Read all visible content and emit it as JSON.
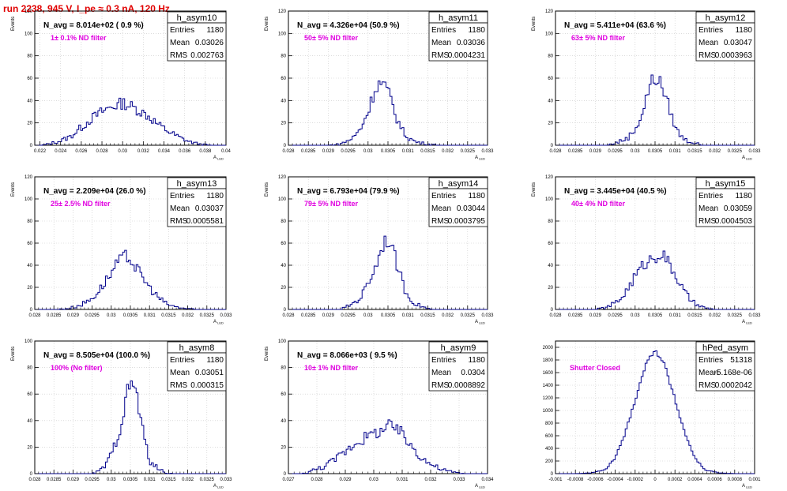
{
  "header": {
    "run_title": "run 2238,   945 V, I_pe ≈ 0.3 nA, 120 Hz"
  },
  "colors": {
    "histogram": "#00008b",
    "filter_label": "#e000e0",
    "frame": "#000000",
    "grid": "#c8c8c8",
    "title": "#e00000"
  },
  "chart_data": [
    {
      "type": "histogram",
      "name": "h_asym10",
      "navg": "N_avg = 8.014e+02 ( 0.9 %)",
      "filter": "1± 0.1% ND filter",
      "stats": {
        "entries": "1180",
        "mean": "0.03026",
        "rms": "0.002763"
      },
      "xlim": [
        0.0215,
        0.04
      ],
      "ylim": [
        0,
        120
      ],
      "xticks": [
        "0.022",
        "0.024",
        "0.026",
        "0.028",
        "0.03",
        "0.032",
        "0.034",
        "0.036",
        "0.038",
        "0.04"
      ],
      "yticks": [
        "0",
        "20",
        "40",
        "60",
        "80",
        "100",
        "120"
      ],
      "ylabel": "Events",
      "xlabel": "A_LED",
      "profile": [
        [
          0.0215,
          0
        ],
        [
          0.0222,
          0
        ],
        [
          0.0228,
          1
        ],
        [
          0.024,
          4
        ],
        [
          0.025,
          8
        ],
        [
          0.026,
          16
        ],
        [
          0.027,
          24
        ],
        [
          0.028,
          30
        ],
        [
          0.0288,
          34
        ],
        [
          0.0295,
          36
        ],
        [
          0.03,
          38
        ],
        [
          0.0305,
          36
        ],
        [
          0.031,
          34
        ],
        [
          0.0318,
          30
        ],
        [
          0.0325,
          26
        ],
        [
          0.0335,
          18
        ],
        [
          0.0345,
          12
        ],
        [
          0.0355,
          7
        ],
        [
          0.0365,
          3
        ],
        [
          0.0375,
          1
        ],
        [
          0.0385,
          0
        ],
        [
          0.04,
          0
        ]
      ]
    },
    {
      "type": "histogram",
      "name": "h_asym11",
      "navg": "N_avg = 4.326e+04 (50.9 %)",
      "filter": "50± 5% ND filter",
      "stats": {
        "entries": "1180",
        "mean": "0.03036",
        "rms": "0.0004231"
      },
      "xlim": [
        0.028,
        0.033
      ],
      "ylim": [
        0,
        120
      ],
      "xticks": [
        "0.028",
        "0.0285",
        "0.029",
        "0.0295",
        "0.03",
        "0.0305",
        "0.031",
        "0.0315",
        "0.032",
        "0.0325",
        "0.033"
      ],
      "yticks": [
        "0",
        "20",
        "40",
        "60",
        "80",
        "100",
        "120"
      ],
      "ylabel": "Events",
      "xlabel": "A_LED",
      "profile": [
        [
          0.028,
          0
        ],
        [
          0.029,
          0
        ],
        [
          0.0293,
          1
        ],
        [
          0.0296,
          6
        ],
        [
          0.0298,
          14
        ],
        [
          0.03,
          30
        ],
        [
          0.0301,
          42
        ],
        [
          0.0302,
          52
        ],
        [
          0.0303,
          56
        ],
        [
          0.0304,
          54
        ],
        [
          0.0305,
          48
        ],
        [
          0.0306,
          38
        ],
        [
          0.0307,
          26
        ],
        [
          0.0308,
          18
        ],
        [
          0.0309,
          11
        ],
        [
          0.031,
          7
        ],
        [
          0.0312,
          3
        ],
        [
          0.0315,
          1
        ],
        [
          0.0318,
          0
        ],
        [
          0.033,
          0
        ]
      ]
    },
    {
      "type": "histogram",
      "name": "h_asym12",
      "navg": "N_avg = 5.411e+04 (63.6 %)",
      "filter": "63± 5% ND filter",
      "stats": {
        "entries": "1180",
        "mean": "0.03047",
        "rms": "0.0003963"
      },
      "xlim": [
        0.028,
        0.033
      ],
      "ylim": [
        0,
        120
      ],
      "xticks": [
        "0.028",
        "0.0285",
        "0.029",
        "0.0295",
        "0.03",
        "0.0305",
        "0.031",
        "0.0315",
        "0.032",
        "0.0325",
        "0.033"
      ],
      "yticks": [
        "0",
        "20",
        "40",
        "60",
        "80",
        "100",
        "120"
      ],
      "ylabel": "Events",
      "xlabel": "A_LED",
      "profile": [
        [
          0.028,
          0
        ],
        [
          0.0293,
          0
        ],
        [
          0.0295,
          2
        ],
        [
          0.0298,
          6
        ],
        [
          0.03,
          14
        ],
        [
          0.0302,
          30
        ],
        [
          0.0303,
          46
        ],
        [
          0.0304,
          56
        ],
        [
          0.0305,
          60
        ],
        [
          0.0306,
          58
        ],
        [
          0.0307,
          50
        ],
        [
          0.0308,
          40
        ],
        [
          0.0309,
          28
        ],
        [
          0.031,
          18
        ],
        [
          0.0311,
          10
        ],
        [
          0.0313,
          4
        ],
        [
          0.0315,
          2
        ],
        [
          0.0317,
          0
        ],
        [
          0.033,
          0
        ]
      ]
    },
    {
      "type": "histogram",
      "name": "h_asym13",
      "navg": "N_avg = 2.209e+04 (26.0 %)",
      "filter": "25± 2.5% ND filter",
      "stats": {
        "entries": "1180",
        "mean": "0.03037",
        "rms": "0.0005581"
      },
      "xlim": [
        0.028,
        0.033
      ],
      "ylim": [
        0,
        120
      ],
      "xticks": [
        "0.028",
        "0.0285",
        "0.029",
        "0.0295",
        "0.03",
        "0.0305",
        "0.031",
        "0.0315",
        "0.032",
        "0.0325",
        "0.033"
      ],
      "yticks": [
        "0",
        "20",
        "40",
        "60",
        "80",
        "100",
        "120"
      ],
      "ylabel": "Events",
      "xlabel": "A_LED",
      "profile": [
        [
          0.028,
          0
        ],
        [
          0.0286,
          0
        ],
        [
          0.0289,
          1
        ],
        [
          0.0292,
          4
        ],
        [
          0.0295,
          10
        ],
        [
          0.0297,
          18
        ],
        [
          0.0299,
          28
        ],
        [
          0.0301,
          38
        ],
        [
          0.0302,
          44
        ],
        [
          0.0304,
          48
        ],
        [
          0.0305,
          46
        ],
        [
          0.0306,
          40
        ],
        [
          0.0308,
          30
        ],
        [
          0.031,
          20
        ],
        [
          0.0312,
          12
        ],
        [
          0.0314,
          6
        ],
        [
          0.0316,
          3
        ],
        [
          0.0319,
          1
        ],
        [
          0.0322,
          0
        ],
        [
          0.033,
          0
        ]
      ]
    },
    {
      "type": "histogram",
      "name": "h_asym14",
      "navg": "N_avg = 6.793e+04 (79.9 %)",
      "filter": "79± 5% ND filter",
      "stats": {
        "entries": "1180",
        "mean": "0.03044",
        "rms": "0.0003795"
      },
      "xlim": [
        0.028,
        0.033
      ],
      "ylim": [
        0,
        120
      ],
      "xticks": [
        "0.028",
        "0.0285",
        "0.029",
        "0.0295",
        "0.03",
        "0.0305",
        "0.031",
        "0.0315",
        "0.032",
        "0.0325",
        "0.033"
      ],
      "yticks": [
        "0",
        "20",
        "40",
        "60",
        "80",
        "100",
        "120"
      ],
      "ylabel": "Events",
      "xlabel": "A_LED",
      "profile": [
        [
          0.028,
          0
        ],
        [
          0.0293,
          0
        ],
        [
          0.0295,
          3
        ],
        [
          0.0298,
          10
        ],
        [
          0.03,
          24
        ],
        [
          0.0302,
          40
        ],
        [
          0.0303,
          52
        ],
        [
          0.0304,
          62
        ],
        [
          0.0305,
          64
        ],
        [
          0.0306,
          56
        ],
        [
          0.0307,
          44
        ],
        [
          0.0308,
          32
        ],
        [
          0.0309,
          20
        ],
        [
          0.031,
          12
        ],
        [
          0.0312,
          5
        ],
        [
          0.0314,
          2
        ],
        [
          0.0316,
          0
        ],
        [
          0.033,
          0
        ]
      ]
    },
    {
      "type": "histogram",
      "name": "h_asym15",
      "navg": "N_avg = 3.445e+04 (40.5 %)",
      "filter": "40± 4% ND filter",
      "stats": {
        "entries": "1180",
        "mean": "0.03059",
        "rms": "0.0004503"
      },
      "xlim": [
        0.028,
        0.033
      ],
      "ylim": [
        0,
        120
      ],
      "xticks": [
        "0.028",
        "0.0285",
        "0.029",
        "0.0295",
        "0.03",
        "0.0305",
        "0.031",
        "0.0315",
        "0.032",
        "0.0325",
        "0.033"
      ],
      "yticks": [
        "0",
        "20",
        "40",
        "60",
        "80",
        "100",
        "120"
      ],
      "ylabel": "Events",
      "xlabel": "A_LED",
      "profile": [
        [
          0.028,
          0
        ],
        [
          0.029,
          0
        ],
        [
          0.0293,
          2
        ],
        [
          0.0296,
          8
        ],
        [
          0.0298,
          18
        ],
        [
          0.03,
          30
        ],
        [
          0.0302,
          40
        ],
        [
          0.0304,
          46
        ],
        [
          0.0306,
          50
        ],
        [
          0.0307,
          50
        ],
        [
          0.0308,
          44
        ],
        [
          0.031,
          32
        ],
        [
          0.0312,
          18
        ],
        [
          0.0314,
          8
        ],
        [
          0.0316,
          3
        ],
        [
          0.0318,
          1
        ],
        [
          0.032,
          0
        ],
        [
          0.033,
          0
        ]
      ]
    },
    {
      "type": "histogram",
      "name": "h_asym8",
      "navg": "N_avg = 8.505e+04 (100.0 %)",
      "filter": "100% (No filter)",
      "stats": {
        "entries": "1180",
        "mean": "0.03051",
        "rms": "0.000315"
      },
      "xlim": [
        0.028,
        0.033
      ],
      "ylim": [
        0,
        100
      ],
      "xticks": [
        "0.028",
        "0.0285",
        "0.029",
        "0.0295",
        "0.03",
        "0.0305",
        "0.031",
        "0.0315",
        "0.032",
        "0.0325",
        "0.033"
      ],
      "yticks": [
        "0",
        "20",
        "40",
        "60",
        "80",
        "100"
      ],
      "ylabel": "Events",
      "xlabel": "A_LED",
      "profile": [
        [
          0.028,
          0
        ],
        [
          0.0295,
          0
        ],
        [
          0.0297,
          2
        ],
        [
          0.0299,
          8
        ],
        [
          0.0301,
          22
        ],
        [
          0.0303,
          42
        ],
        [
          0.0304,
          58
        ],
        [
          0.0305,
          70
        ],
        [
          0.0306,
          66
        ],
        [
          0.0307,
          54
        ],
        [
          0.0308,
          36
        ],
        [
          0.0309,
          22
        ],
        [
          0.031,
          10
        ],
        [
          0.0312,
          4
        ],
        [
          0.0314,
          1
        ],
        [
          0.0316,
          0
        ],
        [
          0.033,
          0
        ]
      ]
    },
    {
      "type": "histogram",
      "name": "h_asym9",
      "navg": "N_avg = 8.066e+03 ( 9.5 %)",
      "filter": "10± 1% ND filter",
      "stats": {
        "entries": "1180",
        "mean": "0.0304",
        "rms": "0.0008892"
      },
      "xlim": [
        0.027,
        0.034
      ],
      "ylim": [
        0,
        100
      ],
      "xticks": [
        "0.027",
        "0.028",
        "0.029",
        "0.03",
        "0.031",
        "0.032",
        "0.033",
        "0.034"
      ],
      "yticks": [
        "0",
        "20",
        "40",
        "60",
        "80",
        "100"
      ],
      "ylabel": "Events",
      "xlabel": "A_LED",
      "profile": [
        [
          0.027,
          0
        ],
        [
          0.0275,
          0
        ],
        [
          0.0278,
          2
        ],
        [
          0.0282,
          5
        ],
        [
          0.0286,
          10
        ],
        [
          0.029,
          17
        ],
        [
          0.0294,
          24
        ],
        [
          0.0298,
          28
        ],
        [
          0.0302,
          32
        ],
        [
          0.0306,
          36
        ],
        [
          0.0309,
          32
        ],
        [
          0.0312,
          24
        ],
        [
          0.0316,
          14
        ],
        [
          0.032,
          7
        ],
        [
          0.0324,
          3
        ],
        [
          0.0328,
          1
        ],
        [
          0.0332,
          0
        ],
        [
          0.034,
          0
        ]
      ]
    },
    {
      "type": "histogram",
      "name": "hPed_asym",
      "navg": "",
      "filter": "Shutter Closed",
      "stats": {
        "entries": "51318",
        "mean": "-5.168e-06",
        "rms": "0.0002042"
      },
      "xlim": [
        -0.001,
        0.001
      ],
      "ylim": [
        0,
        2100
      ],
      "xticks": [
        "-0.001",
        "-0.0008",
        "-0.0006",
        "-0.0004",
        "-0.0002",
        "0",
        "0.0002",
        "0.0004",
        "0.0006",
        "0.0008",
        "0.001"
      ],
      "yticks": [
        "0",
        "200",
        "400",
        "600",
        "800",
        "1000",
        "1200",
        "1400",
        "1600",
        "1800",
        "2000"
      ],
      "ylabel": "",
      "xlabel": "A_LED",
      "profile": [
        [
          -0.001,
          0
        ],
        [
          -0.0008,
          0
        ],
        [
          -0.00065,
          10
        ],
        [
          -0.0005,
          60
        ],
        [
          -0.0004,
          250
        ],
        [
          -0.0003,
          640
        ],
        [
          -0.0002,
          1170
        ],
        [
          -0.0001,
          1700
        ],
        [
          0,
          1980
        ],
        [
          0.0001,
          1700
        ],
        [
          0.0002,
          1170
        ],
        [
          0.0003,
          640
        ],
        [
          0.0004,
          250
        ],
        [
          0.0005,
          60
        ],
        [
          0.00065,
          10
        ],
        [
          0.0008,
          0
        ],
        [
          0.001,
          0
        ]
      ]
    }
  ]
}
